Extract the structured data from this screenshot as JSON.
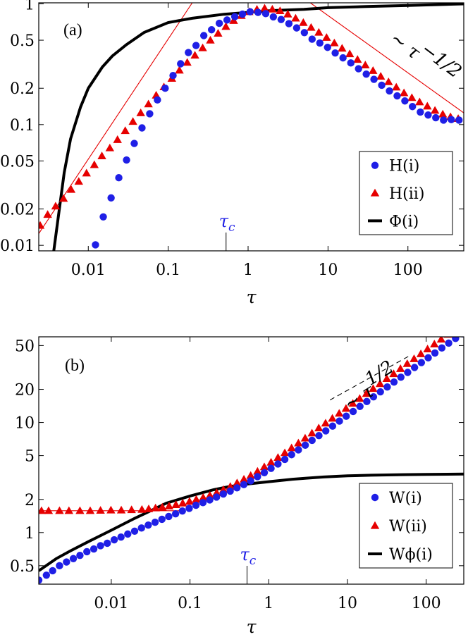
{
  "colors": {
    "blue": "#1f1fe6",
    "red": "#e60000",
    "black": "#000000"
  },
  "chart_data": [
    {
      "panel_label": "(a)",
      "type": "scatter",
      "xlabel": "τ",
      "x_scale": "log",
      "y_scale": "log",
      "xlim": [
        0.0024,
        500
      ],
      "ylim": [
        0.009,
        1.02
      ],
      "x_ticks": [
        {
          "value": 0.01,
          "label": "0.01"
        },
        {
          "value": 0.1,
          "label": "0.1"
        },
        {
          "value": 1,
          "label": "1"
        },
        {
          "value": 10,
          "label": "10"
        },
        {
          "value": 100,
          "label": "100"
        }
      ],
      "y_ticks": [
        {
          "value": 0.01,
          "label": "0.01"
        },
        {
          "value": 0.02,
          "label": "0.02"
        },
        {
          "value": 0.05,
          "label": "0.05"
        },
        {
          "value": 0.1,
          "label": "0.1"
        },
        {
          "value": 0.2,
          "label": "0.2"
        },
        {
          "value": 0.5,
          "label": "0.5"
        },
        {
          "value": 1,
          "label": "1"
        }
      ],
      "tau_c": {
        "value": 0.53,
        "label": "τc"
      },
      "annotation": {
        "text": "∼ τ",
        "exponent": "−1/2"
      },
      "legend": {
        "position": "bottom-right",
        "entries": [
          "H(i)",
          "H(ii)",
          "Φ(i)"
        ]
      },
      "series": [
        {
          "name": "H(i)",
          "marker": "circle",
          "color": "blue",
          "x": [
            0.0123,
            0.0154,
            0.0193,
            0.0241,
            0.0301,
            0.0376,
            0.047,
            0.0587,
            0.0733,
            0.0916,
            0.115,
            0.143,
            0.179,
            0.223,
            0.279,
            0.349,
            0.436,
            0.545,
            0.681,
            0.851,
            1.06,
            1.33,
            1.66,
            2.07,
            2.59,
            3.24,
            4.05,
            5.06,
            6.32,
            7.9,
            9.87,
            12.3,
            15.4,
            19.3,
            24.1,
            30.1,
            37.6,
            47.0,
            58.7,
            73.3,
            91.6,
            114,
            143,
            179,
            223,
            279,
            349,
            436
          ],
          "y": [
            0.0101,
            0.0172,
            0.0247,
            0.0363,
            0.0509,
            0.0698,
            0.0939,
            0.123,
            0.16,
            0.2,
            0.255,
            0.319,
            0.395,
            0.452,
            0.546,
            0.61,
            0.69,
            0.735,
            0.783,
            0.822,
            0.86,
            0.85,
            0.83,
            0.78,
            0.742,
            0.686,
            0.632,
            0.578,
            0.51,
            0.474,
            0.436,
            0.392,
            0.357,
            0.324,
            0.29,
            0.262,
            0.237,
            0.212,
            0.19,
            0.173,
            0.157,
            0.141,
            0.127,
            0.12,
            0.114,
            0.109,
            0.11,
            0.109
          ]
        },
        {
          "name": "H(ii)",
          "marker": "triangle",
          "color": "red",
          "x": [
            0.0025,
            0.0031,
            0.0039,
            0.0049,
            0.0061,
            0.0076,
            0.0095,
            0.0119,
            0.0148,
            0.0186,
            0.0232,
            0.029,
            0.0362,
            0.0453,
            0.0566,
            0.0707,
            0.0884,
            0.111,
            0.138,
            0.173,
            0.216,
            0.27,
            0.337,
            0.421,
            0.527,
            0.659,
            0.823,
            1.03,
            1.29,
            1.61,
            2.01,
            2.51,
            3.14,
            3.93,
            4.91,
            6.14,
            7.67,
            9.59,
            12.0,
            15.0,
            18.7,
            23.4,
            29.3,
            36.6,
            45.7,
            57.2,
            71.5,
            89.3,
            112,
            140,
            175,
            218,
            273,
            341,
            426
          ],
          "y": [
            0.0146,
            0.018,
            0.0211,
            0.0244,
            0.029,
            0.0338,
            0.0396,
            0.0465,
            0.055,
            0.064,
            0.075,
            0.089,
            0.106,
            0.125,
            0.148,
            0.175,
            0.205,
            0.241,
            0.282,
            0.327,
            0.375,
            0.432,
            0.5,
            0.57,
            0.648,
            0.727,
            0.8,
            0.86,
            0.9,
            0.92,
            0.902,
            0.875,
            0.821,
            0.76,
            0.699,
            0.637,
            0.58,
            0.526,
            0.474,
            0.428,
            0.385,
            0.346,
            0.311,
            0.28,
            0.251,
            0.226,
            0.204,
            0.183,
            0.167,
            0.154,
            0.142,
            0.131,
            0.122,
            0.116,
            0.112
          ]
        }
      ],
      "curves": [
        {
          "name": "Φ(i)",
          "color": "black",
          "x": [
            0.0037,
            0.0042,
            0.005,
            0.006,
            0.008,
            0.01,
            0.015,
            0.02,
            0.03,
            0.05,
            0.1,
            0.2,
            0.5,
            1,
            2,
            5,
            10,
            30,
            100,
            500
          ],
          "y": [
            0.009,
            0.017,
            0.04,
            0.076,
            0.14,
            0.2,
            0.3,
            0.37,
            0.46,
            0.58,
            0.7,
            0.76,
            0.82,
            0.85,
            0.88,
            0.9,
            0.93,
            0.95,
            0.97,
            1.0
          ]
        }
      ],
      "guides": [
        {
          "color": "red",
          "from": {
            "x": 0.0024,
            "y": 0.0125
          },
          "to": {
            "x": 0.2,
            "y": 1.02
          }
        },
        {
          "color": "red",
          "from": {
            "x": 6.0,
            "y": 1.02
          },
          "to": {
            "x": 500,
            "y": 0.125
          }
        }
      ]
    },
    {
      "panel_label": "(b)",
      "type": "scatter",
      "xlabel": "τ",
      "x_scale": "log",
      "y_scale": "log",
      "xlim": [
        0.0012,
        300
      ],
      "ylim": [
        0.34,
        60
      ],
      "x_ticks": [
        {
          "value": 0.01,
          "label": "0.01"
        },
        {
          "value": 0.1,
          "label": "0.1"
        },
        {
          "value": 1,
          "label": "1"
        },
        {
          "value": 10,
          "label": "10"
        },
        {
          "value": 100,
          "label": "100"
        }
      ],
      "y_ticks": [
        {
          "value": 0.5,
          "label": "0.5"
        },
        {
          "value": 1,
          "label": "1"
        },
        {
          "value": 2,
          "label": "2"
        },
        {
          "value": 5,
          "label": "5"
        },
        {
          "value": 10,
          "label": "10"
        },
        {
          "value": 20,
          "label": "20"
        },
        {
          "value": 50,
          "label": "50"
        }
      ],
      "tau_c": {
        "value": 0.53,
        "label": "τc"
      },
      "annotation": {
        "text": "∼ τ",
        "exponent": "1/2"
      },
      "legend": {
        "position": "bottom-right",
        "entries": [
          "W(i)",
          "W(ii)",
          "Wϕ(i)"
        ]
      },
      "series": [
        {
          "name": "W(i)",
          "marker": "circle",
          "color": "blue",
          "x": [
            0.0012,
            0.0015,
            0.0018,
            0.0022,
            0.0027,
            0.0033,
            0.004,
            0.0049,
            0.006,
            0.0073,
            0.0089,
            0.0109,
            0.0133,
            0.0162,
            0.0198,
            0.0242,
            0.0295,
            0.036,
            0.044,
            0.0537,
            0.0656,
            0.08,
            0.0977,
            0.119,
            0.146,
            0.178,
            0.217,
            0.265,
            0.324,
            0.395,
            0.483,
            0.589,
            0.72,
            0.879,
            1.07,
            1.31,
            1.6,
            1.95,
            2.38,
            2.91,
            3.55,
            4.34,
            5.3,
            6.47,
            7.9,
            9.64,
            11.8,
            14.4,
            17.6,
            21.4,
            26.2,
            32.0,
            39.0,
            47.7,
            58.2,
            71.1,
            86.8,
            106,
            129,
            158,
            193,
            236,
            288
          ],
          "y": [
            0.37,
            0.41,
            0.45,
            0.5,
            0.54,
            0.58,
            0.62,
            0.67,
            0.71,
            0.76,
            0.8,
            0.86,
            0.91,
            0.97,
            1.03,
            1.1,
            1.17,
            1.24,
            1.32,
            1.4,
            1.48,
            1.57,
            1.66,
            1.77,
            1.87,
            1.98,
            2.1,
            2.24,
            2.38,
            2.55,
            2.73,
            2.95,
            3.22,
            3.5,
            3.83,
            4.2,
            4.62,
            5.1,
            5.64,
            6.22,
            6.88,
            7.6,
            8.4,
            9.28,
            10.3,
            11.4,
            12.6,
            14.0,
            15.5,
            17.1,
            19.0,
            21.0,
            23.3,
            25.8,
            28.5,
            31.6,
            35.0,
            38.7,
            42.8,
            47.5,
            52.6,
            58,
            64
          ]
        },
        {
          "name": "W(ii)",
          "marker": "triangle",
          "color": "red",
          "x": [
            0.0013,
            0.0016,
            0.0022,
            0.0029,
            0.004,
            0.0054,
            0.0073,
            0.0099,
            0.0134,
            0.0181,
            0.0245,
            0.0299,
            0.0365,
            0.0445,
            0.0543,
            0.0663,
            0.0808,
            0.0986,
            0.12,
            0.147,
            0.179,
            0.218,
            0.266,
            0.325,
            0.396,
            0.484,
            0.59,
            0.72,
            0.878,
            1.07,
            1.31,
            1.6,
            1.95,
            2.38,
            2.9,
            3.54,
            4.32,
            5.27,
            6.43,
            7.85,
            9.58,
            11.7,
            14.3,
            17.4,
            21.2,
            25.9,
            31.6,
            38.6,
            47.1,
            57.4,
            70.1,
            85.5,
            104,
            127,
            155,
            189,
            231,
            282
          ],
          "y": [
            1.58,
            1.58,
            1.58,
            1.58,
            1.58,
            1.58,
            1.59,
            1.6,
            1.6,
            1.61,
            1.62,
            1.64,
            1.67,
            1.7,
            1.74,
            1.79,
            1.85,
            1.92,
            2.0,
            2.08,
            2.18,
            2.3,
            2.45,
            2.62,
            2.82,
            3.05,
            3.3,
            3.6,
            3.95,
            4.35,
            4.8,
            5.3,
            5.87,
            6.5,
            7.2,
            8.0,
            8.9,
            9.85,
            10.9,
            12.1,
            13.4,
            14.9,
            16.5,
            18.3,
            20.3,
            22.5,
            25.0,
            27.7,
            30.8,
            34.2,
            37.9,
            42.0,
            46.5,
            51.5,
            57.0,
            63.1,
            69.8,
            77.2
          ]
        }
      ],
      "curves": [
        {
          "name": "Wϕ(i)",
          "color": "black",
          "x": [
            0.0012,
            0.002,
            0.003,
            0.005,
            0.01,
            0.02,
            0.03,
            0.05,
            0.1,
            0.2,
            0.3,
            0.5,
            1,
            2,
            3,
            5,
            10,
            20,
            50,
            100,
            300
          ],
          "y": [
            0.45,
            0.58,
            0.68,
            0.82,
            1.05,
            1.35,
            1.55,
            1.85,
            2.15,
            2.45,
            2.6,
            2.75,
            2.9,
            3.05,
            3.12,
            3.2,
            3.28,
            3.32,
            3.36,
            3.38,
            3.4
          ]
        }
      ],
      "guides": [
        {
          "color": "red",
          "from": {
            "x": 0.0012,
            "y": 1.58
          },
          "to": {
            "x": 0.08,
            "y": 1.58
          }
        },
        {
          "color": "black",
          "dashed": true,
          "from": {
            "x": 6,
            "y": 16
          },
          "to": {
            "x": 60,
            "y": 40
          }
        }
      ]
    }
  ]
}
